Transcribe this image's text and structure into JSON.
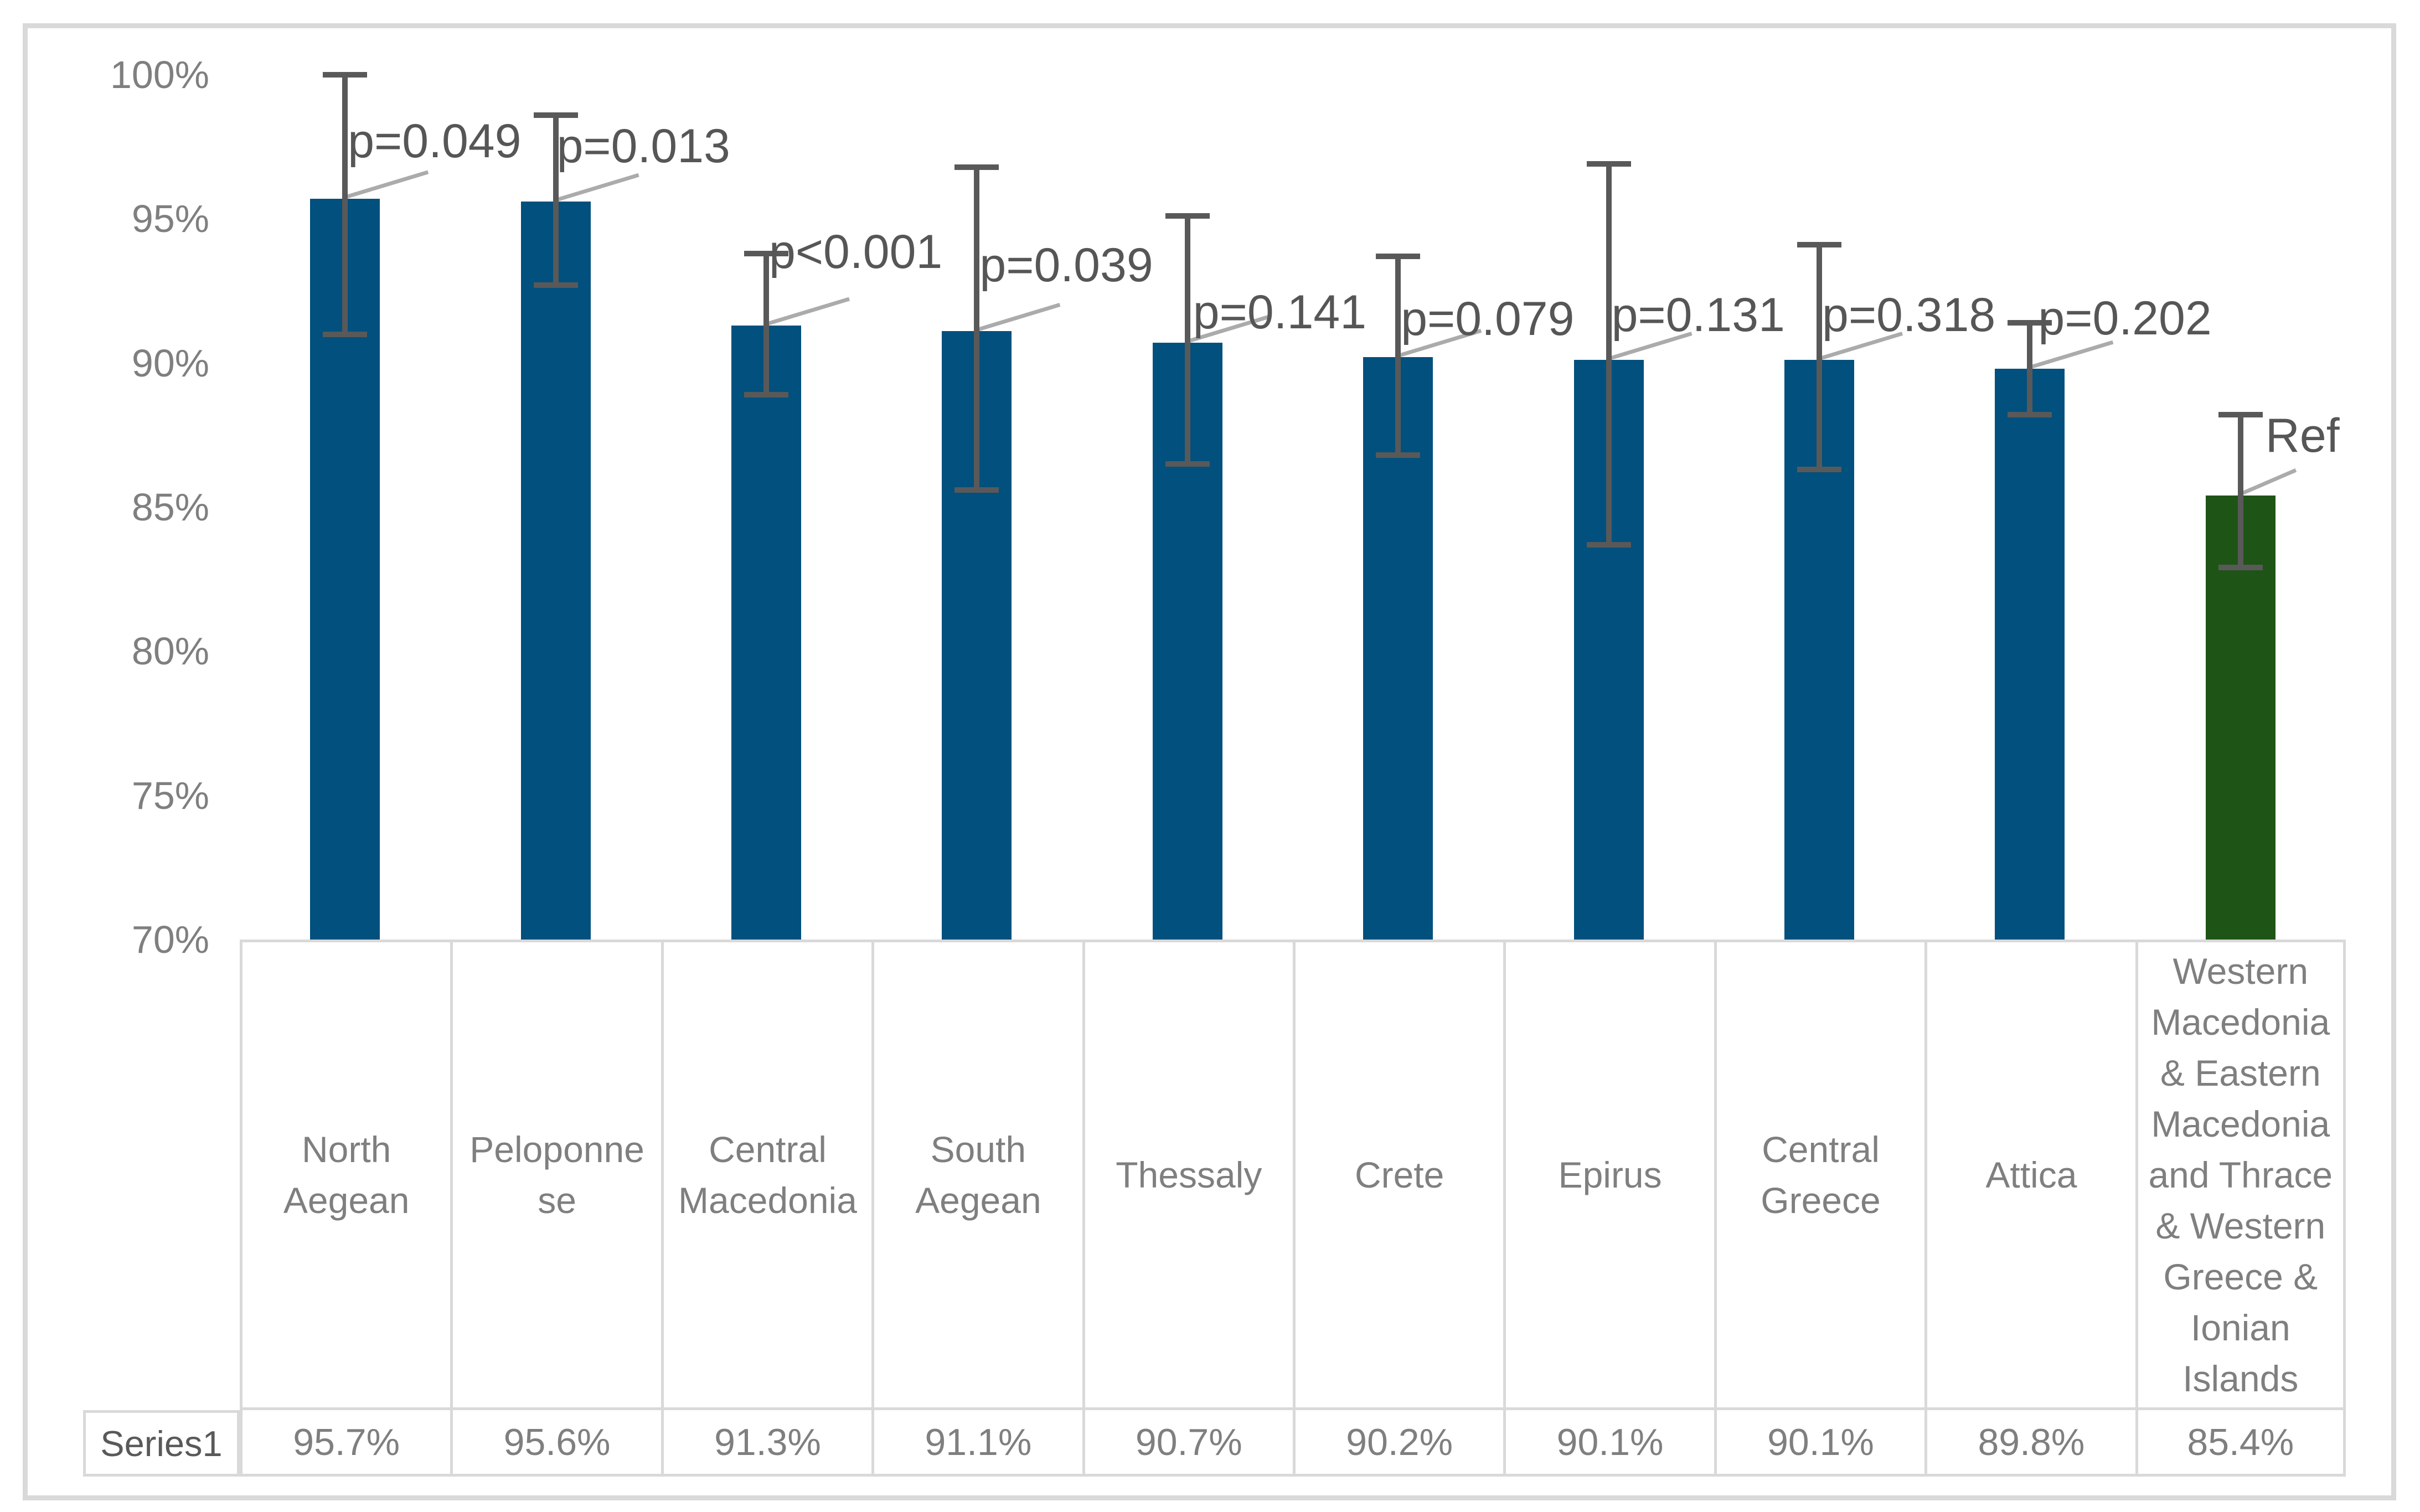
{
  "chart_data": {
    "type": "bar",
    "series_name": "Series1",
    "categories": [
      "North Aegean",
      "Peloponnese",
      "Central Macedonia",
      "South Aegean",
      "Thessaly",
      "Crete",
      "Epirus",
      "Central Greece",
      "Attica",
      "Western Macedonia & Eastern Macedonia and Thrace & Western Greece & Ionian Islands"
    ],
    "categories_display": [
      "North\nAegean",
      "Peloponne\nse",
      "Central\nMacedonia",
      "South\nAegean",
      "Thessaly",
      "Crete",
      "Epirus",
      "Central\nGreece",
      "Attica",
      "Western\nMacedonia\n& Eastern\nMacedonia\nand Thrace\n& Western\nGreece &\nIonian\nIslands"
    ],
    "values": [
      95.7,
      95.6,
      91.3,
      91.1,
      90.7,
      90.2,
      90.1,
      90.1,
      89.8,
      85.4
    ],
    "value_labels": [
      "95.7%",
      "95.6%",
      "91.3%",
      "91.1%",
      "90.7%",
      "90.2%",
      "90.1%",
      "90.1%",
      "89.8%",
      "85.4%"
    ],
    "ci_low": [
      91.0,
      92.7,
      88.9,
      85.6,
      86.5,
      86.8,
      83.7,
      86.3,
      88.2,
      82.9
    ],
    "ci_high": [
      100.0,
      98.6,
      93.8,
      96.8,
      95.1,
      93.7,
      96.9,
      94.1,
      91.4,
      88.2
    ],
    "p_labels": [
      "p=0.049",
      "p=0.013",
      "p<0.001",
      "p=0.039",
      "p=0.141",
      "p=0.079",
      "p=0.131",
      "p=0.318",
      "p=0.202",
      "Ref"
    ],
    "reference_index": 9,
    "axis": {
      "y_ticks": [
        "100%",
        "95%",
        "90%",
        "85%",
        "80%",
        "75%",
        "70%"
      ],
      "y_tick_values": [
        100,
        95,
        90,
        85,
        80,
        75,
        70
      ],
      "ylim": [
        70,
        100
      ],
      "grid": false,
      "legend": "none"
    },
    "colors": {
      "bar_default": "#01507D",
      "bar_reference": "#1F5417",
      "error_bar": "#595959",
      "p_label_text": "#565656",
      "tick_text": "#7F7F7F",
      "table_text": "#7F7F7F",
      "series_label_text": "#595959",
      "table_border": "#D9D9D9",
      "leader_line": "#ABABAB",
      "background": "#FFFFFF"
    }
  }
}
